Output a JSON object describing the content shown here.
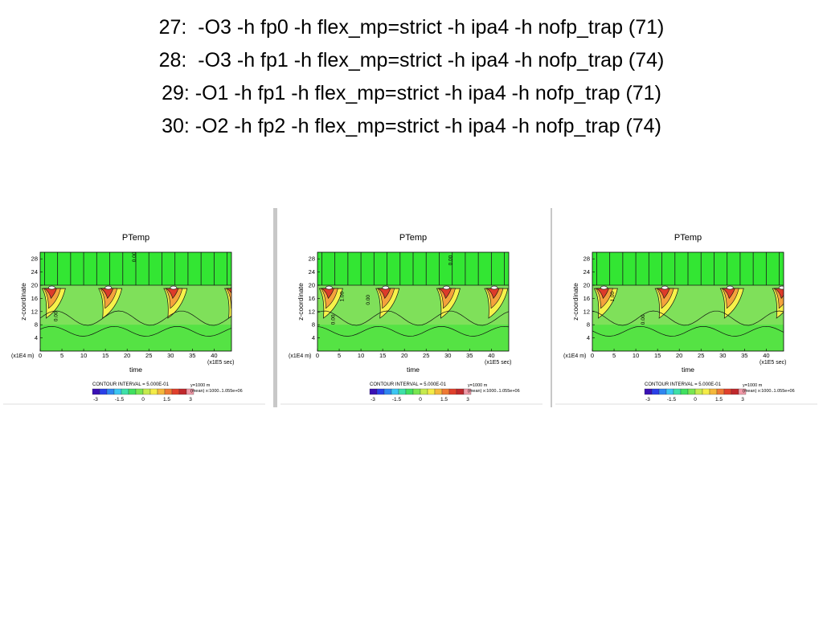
{
  "slide": {
    "title_lines": [
      "27:  -O3 -h fp0 -h flex_mp=strict -h ipa4 -h nofp_trap (71)",
      "28:  -O3 -h fp1 -h flex_mp=strict -h ipa4 -h nofp_trap (74)",
      "29: -O1 -h fp1 -h flex_mp=strict -h ipa4 -h nofp_trap (71)",
      "30: -O2 -h fp2 -h flex_mp=strict -h ipa4 -h nofp_trap (74)"
    ]
  },
  "chart_data": [
    {
      "type": "heatmap",
      "title": "PTemp",
      "xlabel": "time",
      "ylabel": "z-coordinate",
      "x_scale_label": "(x1E5 sec)",
      "y_scale_label": "(x1E4 m)",
      "x_ticks": [
        0,
        5,
        10,
        15,
        20,
        25,
        30,
        35,
        40
      ],
      "y_ticks": [
        4,
        8,
        12,
        16,
        20,
        24,
        28
      ],
      "xlim": [
        0,
        44
      ],
      "ylim": [
        0,
        30
      ],
      "contour_interval_text": "CONTOUR INTERVAL = 5.000E-01",
      "colorbar_ticks": [
        "-3",
        "-1.5",
        "0",
        "1.5",
        "3"
      ],
      "info_lines": [
        "y=1000 m",
        "(mean) x:1000..1.055e+06"
      ],
      "hot_spots_x": [
        1,
        14,
        29,
        43
      ],
      "contour_labels": [
        {
          "text": "0.00",
          "x": 22,
          "y": 27
        },
        {
          "text": "0.00",
          "x": 4,
          "y": 9
        }
      ]
    },
    {
      "type": "heatmap",
      "title": "PTemp",
      "xlabel": "time",
      "ylabel": "z-coordinate",
      "x_scale_label": "(x1E5 sec)",
      "y_scale_label": "(x1E4 m)",
      "x_ticks": [
        0,
        5,
        10,
        15,
        20,
        25,
        30,
        35,
        40
      ],
      "y_ticks": [
        4,
        8,
        12,
        16,
        20,
        24,
        28
      ],
      "xlim": [
        0,
        44
      ],
      "ylim": [
        0,
        30
      ],
      "contour_interval_text": "CONTOUR INTERVAL = 5.000E-01",
      "colorbar_ticks": [
        "-3",
        "-1.5",
        "0",
        "1.5",
        "3"
      ],
      "info_lines": [
        "y=1000 m",
        "(mean) x:1000..1.055e+06"
      ],
      "hot_spots_x": [
        1,
        14,
        28,
        39
      ],
      "contour_labels": [
        {
          "text": "0.00",
          "x": 31,
          "y": 26
        },
        {
          "text": "1.00",
          "x": 6,
          "y": 15
        },
        {
          "text": "0.00",
          "x": 12,
          "y": 14
        },
        {
          "text": "0.00",
          "x": 4,
          "y": 8
        }
      ]
    },
    {
      "type": "heatmap",
      "title": "PTemp",
      "xlabel": "time",
      "ylabel": "z-coordinate",
      "x_scale_label": "(x1E5 sec)",
      "y_scale_label": "(x1E4 m)",
      "x_ticks": [
        0,
        5,
        10,
        15,
        20,
        25,
        30,
        35,
        40
      ],
      "y_ticks": [
        4,
        8,
        12,
        16,
        20,
        24,
        28
      ],
      "xlim": [
        0,
        44
      ],
      "ylim": [
        0,
        30
      ],
      "contour_interval_text": "CONTOUR INTERVAL = 5.000E-01",
      "colorbar_ticks": [
        "-3",
        "-1.5",
        "0",
        "1.5",
        "3"
      ],
      "info_lines": [
        "y=1000 m",
        "(mean) x:1000..1.055e+06"
      ],
      "hot_spots_x": [
        1,
        15,
        30,
        42
      ],
      "contour_labels": [
        {
          "text": "1.00",
          "x": 5,
          "y": 15
        },
        {
          "text": "0.00",
          "x": 12,
          "y": 8
        }
      ]
    }
  ],
  "colors": {
    "background": "#7fe05a",
    "bright_green": "#33e633",
    "yellow": "#f6f24a",
    "orange": "#f4a23c",
    "red": "#dd3b2a",
    "dark_red": "#b21e1e",
    "colorbar": [
      "#3a10b4",
      "#2a40e8",
      "#2f86f0",
      "#3cc6f2",
      "#3ee0a8",
      "#40e060",
      "#79e651",
      "#c6ea4e",
      "#f4ec48",
      "#f4b83c",
      "#ee7a34",
      "#e0402c",
      "#c0282c",
      "#f09aa8"
    ]
  }
}
